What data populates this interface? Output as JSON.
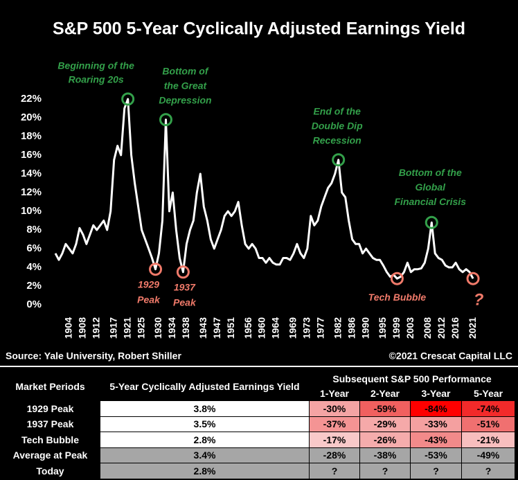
{
  "chart_data": {
    "type": "line",
    "title": "S&P 500 5-Year Cyclically Adjusted Earnings Yield",
    "source": "Source: Yale University, Robert Shiller",
    "credit": "©2021 Crescat Capital LLC",
    "color": "#ffffff",
    "x": [
      1900,
      1901,
      1902,
      1903,
      1904,
      1905,
      1906,
      1907,
      1908,
      1909,
      1910,
      1911,
      1912,
      1913,
      1914,
      1915,
      1916,
      1917,
      1918,
      1919,
      1920,
      1921,
      1922,
      1923,
      1924,
      1925,
      1926,
      1927,
      1928,
      1929,
      1930,
      1931,
      1932,
      1933,
      1934,
      1935,
      1936,
      1937,
      1938,
      1939,
      1940,
      1941,
      1942,
      1943,
      1944,
      1945,
      1946,
      1947,
      1948,
      1949,
      1950,
      1951,
      1952,
      1953,
      1954,
      1955,
      1956,
      1957,
      1958,
      1959,
      1960,
      1961,
      1962,
      1963,
      1964,
      1965,
      1966,
      1967,
      1968,
      1969,
      1970,
      1971,
      1972,
      1973,
      1974,
      1975,
      1976,
      1977,
      1978,
      1979,
      1980,
      1981,
      1982,
      1983,
      1984,
      1985,
      1986,
      1987,
      1988,
      1989,
      1990,
      1991,
      1992,
      1993,
      1994,
      1995,
      1996,
      1997,
      1998,
      1999,
      2000,
      2001,
      2002,
      2003,
      2004,
      2005,
      2006,
      2007,
      2008,
      2009,
      2010,
      2011,
      2012,
      2013,
      2014,
      2015,
      2016,
      2017,
      2018,
      2019,
      2020,
      2021
    ],
    "values": [
      5.5,
      4.8,
      5.5,
      6.5,
      6.0,
      5.5,
      6.5,
      8.2,
      7.5,
      6.5,
      7.5,
      8.5,
      8.0,
      8.5,
      9.0,
      8.0,
      10.0,
      15.5,
      17.0,
      16.0,
      21.0,
      22.0,
      16.0,
      13.0,
      10.5,
      8.0,
      7.0,
      6.0,
      5.0,
      3.8,
      5.5,
      9.0,
      19.8,
      10.0,
      12.0,
      8.0,
      5.0,
      3.5,
      6.5,
      8.0,
      9.0,
      12.0,
      14.0,
      10.5,
      9.0,
      7.0,
      6.0,
      7.0,
      8.0,
      9.5,
      10.0,
      9.5,
      10.0,
      11.0,
      8.5,
      6.5,
      6.0,
      6.5,
      6.0,
      5.0,
      5.0,
      4.5,
      5.0,
      4.5,
      4.3,
      4.3,
      5.0,
      5.0,
      4.8,
      5.5,
      6.5,
      5.5,
      5.0,
      6.0,
      9.5,
      8.5,
      9.0,
      10.5,
      11.5,
      12.5,
      13.0,
      14.0,
      15.5,
      12.0,
      11.5,
      9.0,
      7.0,
      6.5,
      6.5,
      5.5,
      6.0,
      5.5,
      5.0,
      4.8,
      4.8,
      4.2,
      3.5,
      3.0,
      3.2,
      2.8,
      3.0,
      3.5,
      4.5,
      3.5,
      3.8,
      3.8,
      3.9,
      4.5,
      6.0,
      8.8,
      5.5,
      5.0,
      4.8,
      4.2,
      4.0,
      4.0,
      4.5,
      3.8,
      3.5,
      3.8,
      3.5,
      2.8
    ],
    "xlim": [
      1899,
      2025
    ],
    "xticks": [
      1904,
      1908,
      1912,
      1917,
      1921,
      1925,
      1930,
      1934,
      1938,
      1943,
      1947,
      1951,
      1956,
      1960,
      1964,
      1969,
      1973,
      1977,
      1982,
      1986,
      1990,
      1995,
      1999,
      2003,
      2008,
      2012,
      2016,
      2021
    ],
    "ylim": [
      0,
      22
    ],
    "yticks": [
      {
        "value": 0,
        "label": "0%"
      },
      {
        "value": 2,
        "label": "2%"
      },
      {
        "value": 4,
        "label": "4%"
      },
      {
        "value": 6,
        "label": "6%"
      },
      {
        "value": 8,
        "label": "8%"
      },
      {
        "value": 10,
        "label": "10%"
      },
      {
        "value": 12,
        "label": "12%"
      },
      {
        "value": 14,
        "label": "14%"
      },
      {
        "value": 16,
        "label": "16%"
      },
      {
        "value": 18,
        "label": "18%"
      },
      {
        "value": 20,
        "label": "20%"
      },
      {
        "value": 22,
        "label": "22%"
      }
    ],
    "grid": false,
    "peaks": {
      "color": "#33a04a",
      "items": [
        {
          "x": 1921,
          "text": [
            "Beginning of the",
            "Roaring 20s"
          ]
        },
        {
          "x": 1932,
          "text": [
            "Bottom of",
            "the Great",
            "Depression"
          ]
        },
        {
          "x": 1982,
          "text": [
            "End of the",
            "Double Dip",
            "Recession"
          ]
        },
        {
          "x": 2009,
          "text": [
            "Bottom of the",
            "Global",
            "Financial Crisis"
          ]
        }
      ]
    },
    "troughs": {
      "color": "#f07a6a",
      "items": [
        {
          "x": 1929,
          "text": [
            "1929",
            "Peak"
          ]
        },
        {
          "x": 1937,
          "text": [
            "1937",
            "Peak"
          ]
        },
        {
          "x": 1999,
          "text": [
            "Tech Bubble"
          ]
        },
        {
          "x": 2021,
          "text": [
            "?"
          ]
        }
      ]
    }
  },
  "table": {
    "headers": {
      "period": "Market Periods",
      "yield": "5-Year Cyclically Adjusted Earnings Yield",
      "performance": "Subsequent S&P 500 Performance",
      "horizons": [
        "1-Year",
        "2-Year",
        "3-Year",
        "5-Year"
      ]
    },
    "rows": [
      [
        "1929 Peak",
        "3.8%",
        "-30%",
        "-59%",
        "-84%",
        "-74%"
      ],
      [
        "1937 Peak",
        "3.5%",
        "-37%",
        "-29%",
        "-33%",
        "-51%"
      ],
      [
        "Tech Bubble",
        "2.8%",
        "-17%",
        "-26%",
        "-43%",
        "-21%"
      ],
      [
        "Average at Peak",
        "3.4%",
        "-28%",
        "-38%",
        "-53%",
        "-49%"
      ],
      [
        "Today",
        "2.8%",
        "?",
        "?",
        "?",
        "?"
      ]
    ],
    "cell_colors": [
      [
        "#ffffff",
        "#f4a4a4",
        "#f0605f",
        "#ff0000",
        "#f22a2a"
      ],
      [
        "#ffffff",
        "#f49494",
        "#f5a9a9",
        "#f4a0a0",
        "#f07070"
      ],
      [
        "#ffffff",
        "#f9c9c9",
        "#f5acac",
        "#f28a8a",
        "#f8bebe"
      ],
      [
        "#a6a6a6",
        "#a6a6a6",
        "#a6a6a6",
        "#a6a6a6",
        "#a6a6a6"
      ],
      [
        "#a6a6a6",
        "#a6a6a6",
        "#a6a6a6",
        "#a6a6a6",
        "#a6a6a6"
      ]
    ]
  }
}
